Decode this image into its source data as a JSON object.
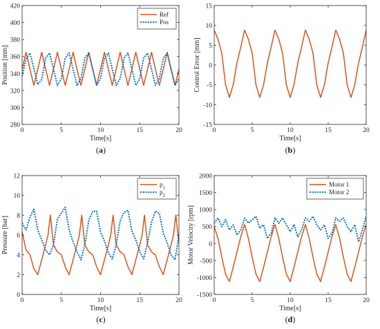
{
  "colors": {
    "series1": "#D95319",
    "series2": "#0072BD",
    "axis": "#262626"
  },
  "chart_data": [
    {
      "type": "line",
      "caption_letter": "a",
      "xlabel": "Time[s]",
      "ylabel": "Position [mm]",
      "xlim": [
        0,
        20
      ],
      "ylim": [
        280,
        420
      ],
      "xticks": [
        0,
        5,
        10,
        15,
        20
      ],
      "yticks": [
        280,
        300,
        320,
        340,
        360,
        380,
        400,
        420
      ],
      "grid": false,
      "legend_position": "top-right",
      "series": [
        {
          "name": "Ref",
          "style": "solid",
          "color": "#D95319",
          "x": [
            0,
            0.5,
            1,
            1.5,
            2,
            2.5,
            3,
            3.5,
            4,
            4.5,
            5,
            5.5,
            6,
            6.5,
            7,
            7.5,
            8,
            8.5,
            9,
            9.5,
            10,
            10.5,
            11,
            11.5,
            12,
            12.5,
            13,
            13.5,
            14,
            14.5,
            15,
            15.5,
            16,
            16.5,
            17,
            17.5,
            18,
            18.5,
            19,
            19.5,
            20
          ],
          "y": [
            345,
            365,
            345,
            326,
            345,
            365,
            345,
            326,
            345,
            365,
            345,
            326,
            345,
            365,
            345,
            326,
            345,
            365,
            345,
            326,
            345,
            365,
            345,
            326,
            345,
            365,
            345,
            326,
            345,
            365,
            345,
            326,
            345,
            365,
            345,
            326,
            345,
            365,
            345,
            326,
            345
          ]
        },
        {
          "name": "Pos",
          "style": "dotted",
          "color": "#0072BD",
          "x": [
            0,
            0.5,
            1,
            1.5,
            2,
            2.5,
            3,
            3.5,
            4,
            4.5,
            5,
            5.5,
            6,
            6.5,
            7,
            7.5,
            8,
            8.5,
            9,
            9.5,
            10,
            10.5,
            11,
            11.5,
            12,
            12.5,
            13,
            13.5,
            14,
            14.5,
            15,
            15.5,
            16,
            16.5,
            17,
            17.5,
            18,
            18.5,
            19,
            19.5,
            20
          ],
          "y": [
            337,
            357,
            364,
            346,
            327,
            333,
            358,
            364,
            345,
            326,
            334,
            358,
            364,
            345,
            326,
            334,
            358,
            364,
            345,
            326,
            334,
            358,
            364,
            345,
            326,
            334,
            358,
            364,
            345,
            326,
            334,
            358,
            364,
            345,
            326,
            334,
            358,
            364,
            345,
            326,
            334
          ]
        }
      ]
    },
    {
      "type": "line",
      "caption_letter": "b",
      "xlabel": "Time[s]",
      "ylabel": "Control Error [mm]",
      "xlim": [
        0,
        20
      ],
      "ylim": [
        -15,
        15
      ],
      "xticks": [
        0,
        5,
        10,
        15,
        20
      ],
      "yticks": [
        -15,
        -10,
        -5,
        0,
        5,
        10,
        15
      ],
      "grid": false,
      "series": [
        {
          "style": "solid",
          "color": "#D95319",
          "x": [
            0,
            0.5,
            1,
            1.5,
            2,
            2.5,
            3,
            3.5,
            4,
            4.5,
            5,
            5.5,
            6,
            6.5,
            7,
            7.5,
            8,
            8.5,
            9,
            9.5,
            10,
            10.5,
            11,
            11.5,
            12,
            12.5,
            13,
            13.5,
            14,
            14.5,
            15,
            15.5,
            16,
            16.5,
            17,
            17.5,
            18,
            18.5,
            19,
            19.5,
            20
          ],
          "y": [
            8.8,
            6.5,
            3,
            -5,
            -8.2,
            -5,
            0.5,
            4.5,
            8.8,
            6.5,
            3,
            -5,
            -8.2,
            -5,
            0.5,
            4.5,
            8.8,
            6.5,
            3,
            -5,
            -8.2,
            -5,
            0.5,
            4.5,
            8.8,
            6.5,
            3,
            -5,
            -8.2,
            -5,
            0.5,
            4.5,
            8.8,
            6.5,
            3,
            -5,
            -8.2,
            -5,
            0.5,
            4.5,
            8.8
          ]
        }
      ]
    },
    {
      "type": "line",
      "caption_letter": "c",
      "xlabel": "Time[s]",
      "ylabel": "Pressure [bar]",
      "xlim": [
        0,
        20
      ],
      "ylim": [
        0,
        12
      ],
      "xticks": [
        0,
        5,
        10,
        15,
        20
      ],
      "yticks": [
        0,
        2,
        4,
        6,
        8,
        10,
        12
      ],
      "grid": false,
      "legend_position": "top-right",
      "series": [
        {
          "name": "p",
          "subscript": "1",
          "style": "solid",
          "color": "#D95319",
          "x": [
            0,
            0.5,
            1,
            1.5,
            2,
            2.5,
            3,
            3.3,
            3.6,
            4,
            4.5,
            5,
            5.5,
            6,
            6.5,
            7,
            7.3,
            7.6,
            8,
            8.5,
            9,
            9.5,
            10,
            10.5,
            11,
            11.3,
            11.6,
            12,
            12.5,
            13,
            13.5,
            14,
            14.5,
            15,
            15.3,
            15.6,
            16,
            16.5,
            17,
            17.5,
            18,
            18.5,
            19,
            19.3,
            19.6,
            20
          ],
          "y": [
            6.3,
            4.5,
            4,
            2.6,
            2,
            3.5,
            5,
            6,
            8,
            5,
            4.3,
            4,
            2.8,
            2,
            3.5,
            5,
            6,
            8,
            5,
            4.3,
            4,
            2.8,
            2,
            3.5,
            5,
            6,
            8,
            5,
            4.3,
            4,
            2.8,
            2,
            3.5,
            5,
            6,
            8,
            5,
            4.3,
            4,
            2.8,
            2,
            3.5,
            5,
            6,
            8,
            5.2
          ]
        },
        {
          "name": "p",
          "subscript": "2",
          "style": "dotted",
          "color": "#0072BD",
          "x": [
            0,
            0.5,
            1,
            1.5,
            2,
            2.5,
            3,
            3.5,
            4,
            4.5,
            5,
            5.5,
            6,
            6.5,
            7,
            7.5,
            8,
            8.5,
            9,
            9.5,
            10,
            10.5,
            11,
            11.5,
            12,
            12.5,
            13,
            13.5,
            14,
            14.5,
            15,
            15.5,
            16,
            16.5,
            17,
            17.5,
            18,
            18.5,
            19,
            19.5,
            20
          ],
          "y": [
            7.2,
            6.5,
            7.8,
            8.6,
            6.5,
            5.5,
            4.5,
            4,
            5,
            7.6,
            8.2,
            8.8,
            6.5,
            5.3,
            4.3,
            3.5,
            5,
            7.5,
            8.4,
            8.4,
            6.3,
            5.4,
            4.2,
            3.6,
            5,
            7.4,
            8.3,
            8.5,
            6.4,
            5.5,
            4.3,
            3.6,
            5.2,
            7.3,
            8.4,
            8.2,
            6.2,
            5.2,
            4,
            3.5,
            6
          ]
        }
      ]
    },
    {
      "type": "line",
      "caption_letter": "d",
      "xlabel": "Time[s]",
      "ylabel": "Motor Velocity [rpm]",
      "xlim": [
        0,
        20
      ],
      "ylim": [
        -1500,
        2000
      ],
      "xticks": [
        0,
        5,
        10,
        15,
        20
      ],
      "yticks": [
        -1500,
        -1000,
        -500,
        0,
        500,
        1000,
        1500,
        2000
      ],
      "grid": false,
      "legend_position": "top-right",
      "series": [
        {
          "name": "Motor 1",
          "style": "solid",
          "color": "#D95319",
          "x": [
            0,
            0.5,
            1,
            1.5,
            2,
            2.5,
            3,
            3.5,
            4,
            4.5,
            5,
            5.5,
            6,
            6.5,
            7,
            7.5,
            8,
            8.5,
            9,
            9.5,
            10,
            10.5,
            11,
            11.5,
            12,
            12.5,
            13,
            13.5,
            14,
            14.5,
            15,
            15.5,
            16,
            16.5,
            17,
            17.5,
            18,
            18.5,
            19,
            19.5,
            20
          ],
          "y": [
            500,
            150,
            -400,
            -900,
            -1120,
            -700,
            -250,
            200,
            560,
            150,
            -400,
            -900,
            -1120,
            -700,
            -250,
            200,
            560,
            150,
            -400,
            -900,
            -1120,
            -700,
            -250,
            200,
            560,
            150,
            -400,
            -900,
            -1120,
            -700,
            -250,
            200,
            560,
            150,
            -400,
            -900,
            -1120,
            -700,
            -250,
            200,
            560
          ]
        },
        {
          "name": "Motor 2",
          "style": "dotted",
          "color": "#0072BD",
          "x": [
            0,
            0.5,
            1,
            1.5,
            2,
            2.5,
            3,
            3.5,
            4,
            4.5,
            5,
            5.5,
            6,
            6.5,
            7,
            7.5,
            8,
            8.5,
            9,
            9.5,
            10,
            10.5,
            11,
            11.5,
            12,
            12.5,
            13,
            13.5,
            14,
            14.5,
            15,
            15.5,
            16,
            16.5,
            17,
            17.5,
            18,
            18.5,
            19,
            19.5,
            20
          ],
          "y": [
            600,
            750,
            500,
            700,
            400,
            550,
            250,
            400,
            750,
            600,
            700,
            800,
            450,
            550,
            150,
            300,
            750,
            600,
            750,
            550,
            350,
            550,
            200,
            400,
            750,
            650,
            800,
            550,
            400,
            550,
            150,
            300,
            750,
            650,
            750,
            500,
            350,
            550,
            50,
            400,
            800
          ]
        }
      ]
    }
  ]
}
